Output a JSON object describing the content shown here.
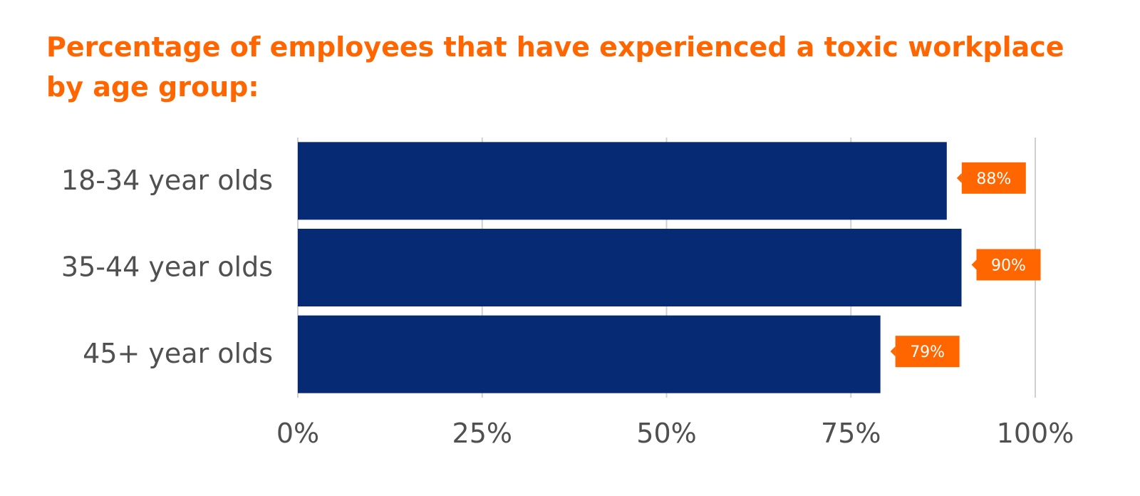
{
  "chart_data": {
    "type": "bar",
    "orientation": "horizontal",
    "title_lines": [
      "Percentage of employees that have experienced a toxic workplace",
      "by age group:"
    ],
    "categories": [
      "18-34 year olds",
      "35-44 year olds",
      "45+ year olds"
    ],
    "values": [
      88,
      90,
      79
    ],
    "data_labels": [
      "88%",
      "90%",
      "79%"
    ],
    "xlim": [
      0,
      100
    ],
    "x_ticks": [
      0,
      25,
      50,
      75,
      100
    ],
    "x_tick_labels": [
      "0%",
      "25%",
      "50%",
      "75%",
      "100%"
    ],
    "xlabel": "",
    "ylabel": "",
    "grid": true,
    "colors": {
      "bar": "#062a73",
      "label_bg": "#ff6600",
      "title": "#ff6600",
      "grid": "#d0d0d0",
      "axis_text": "#505050"
    }
  }
}
